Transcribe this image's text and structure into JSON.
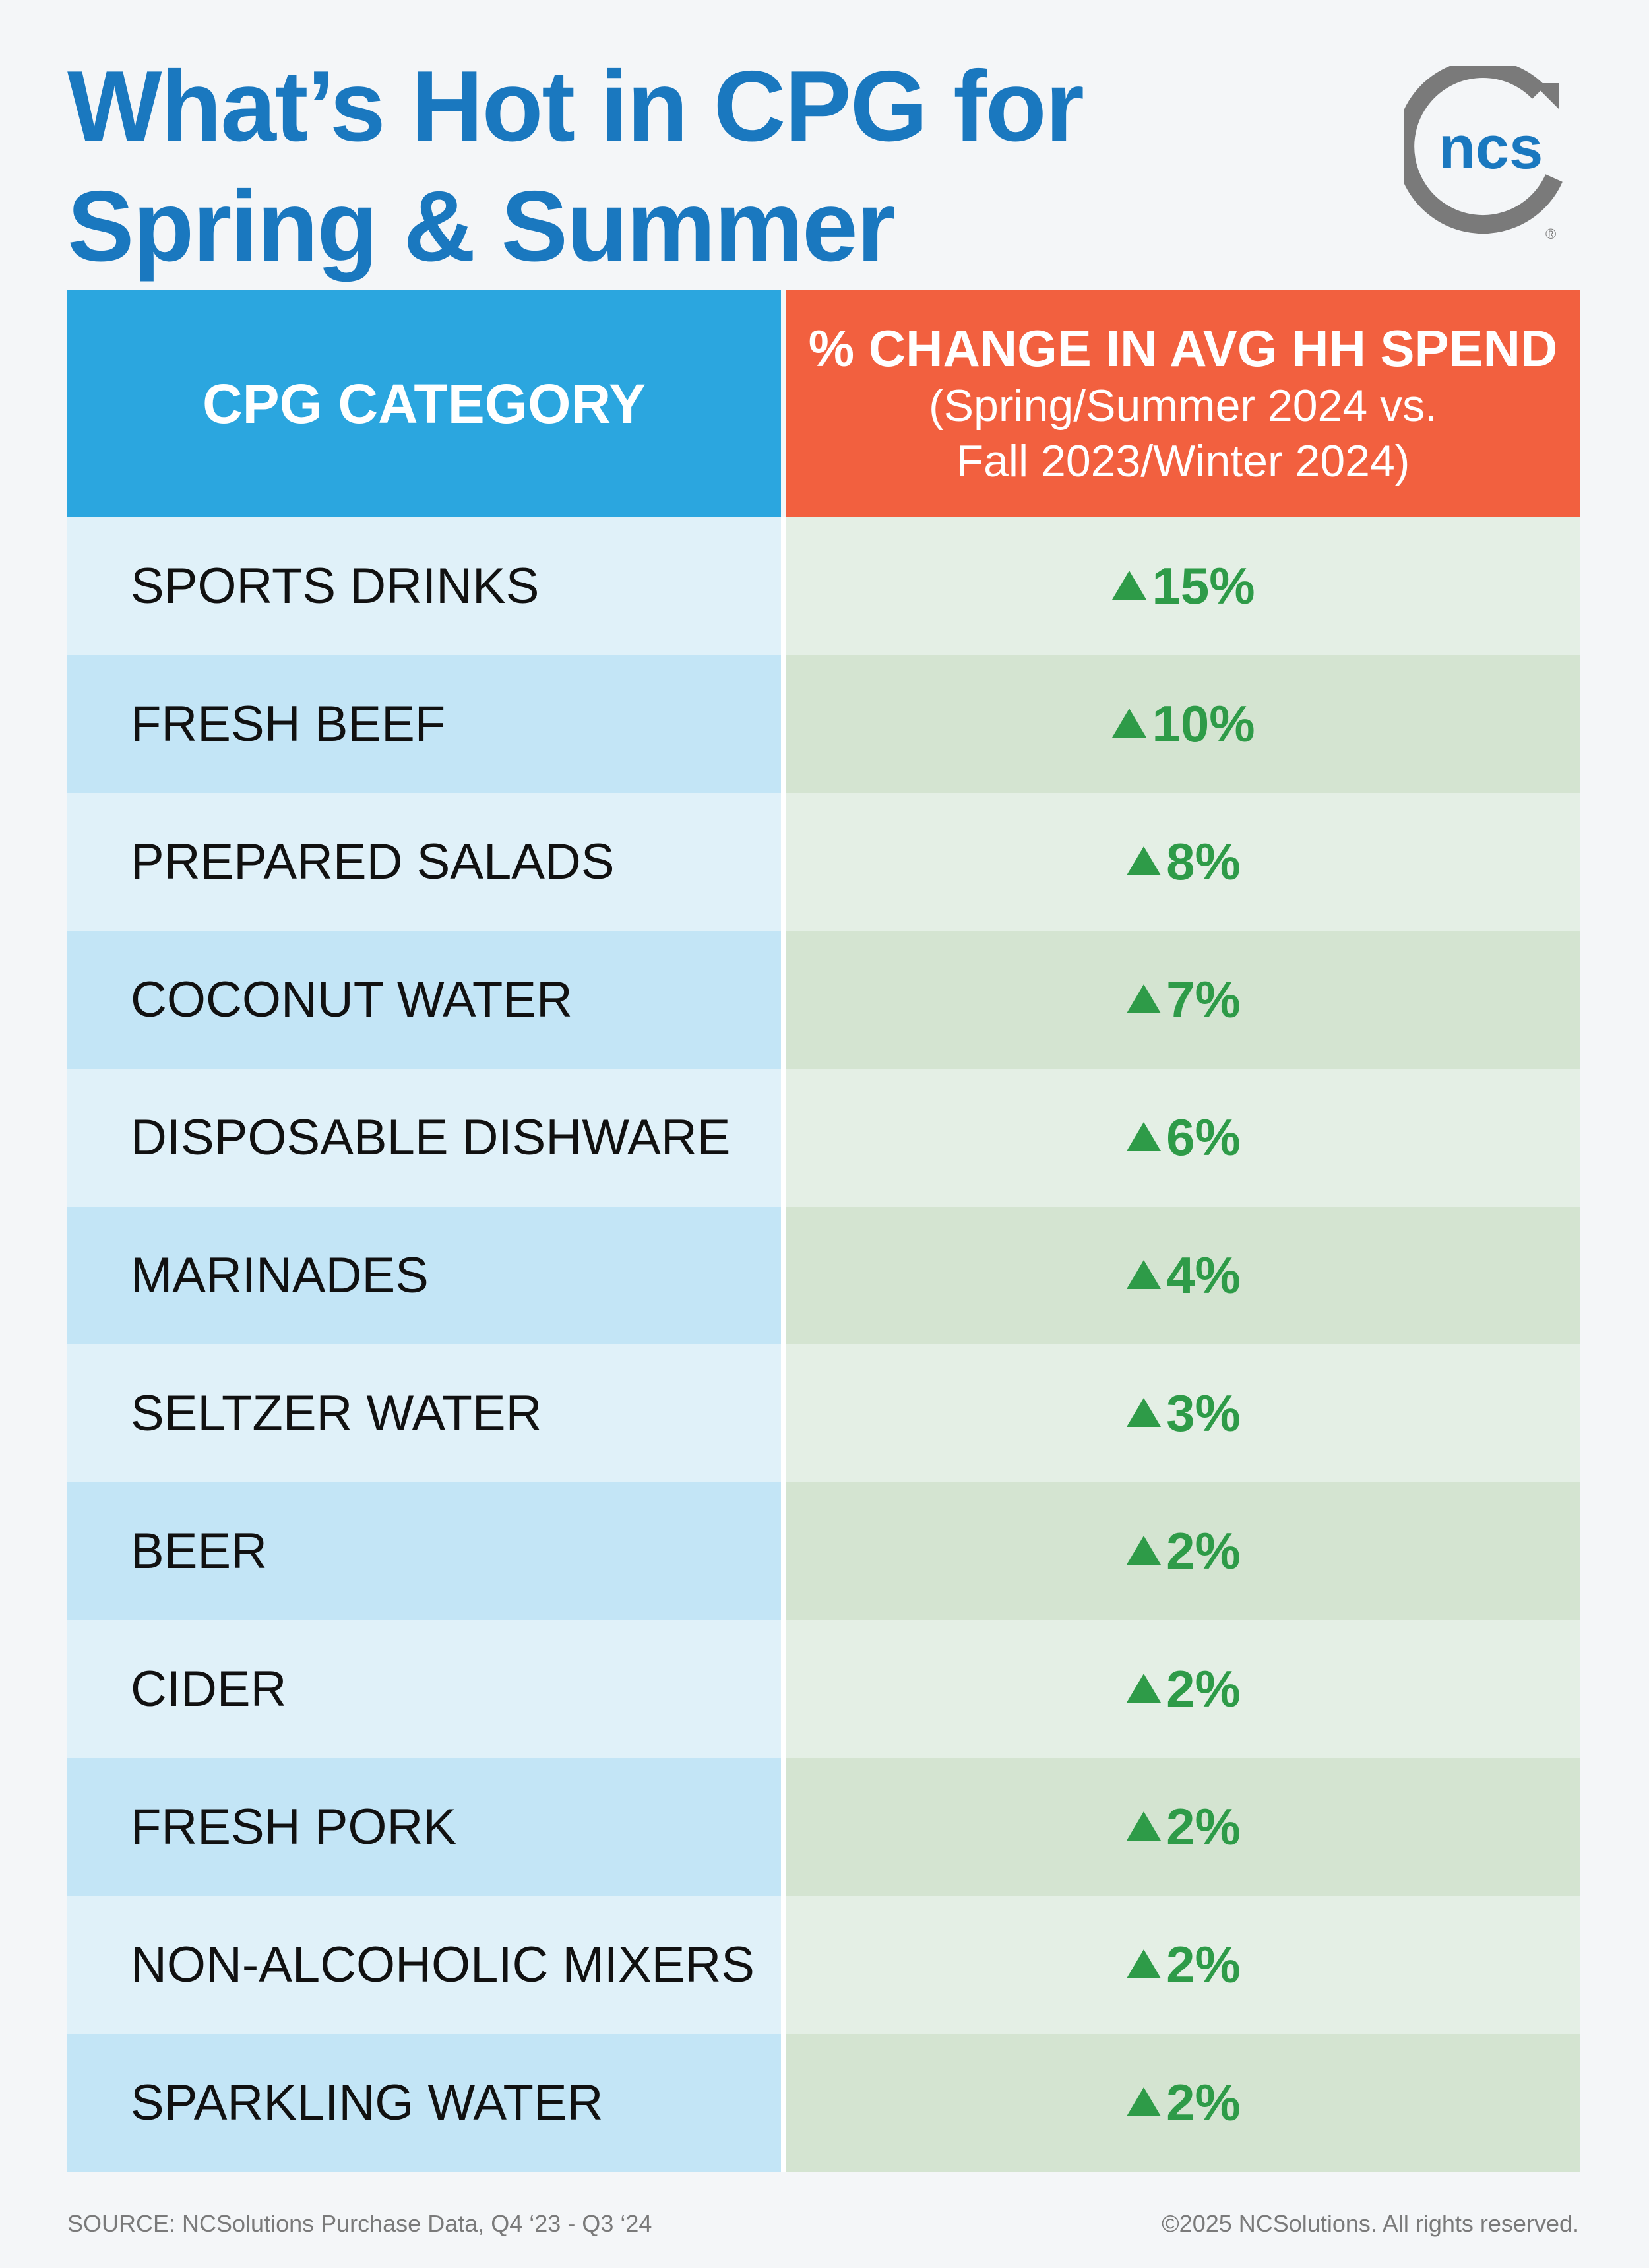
{
  "title_line1": "What’s Hot in CPG for",
  "title_line2": "Spring & Summer",
  "logo": {
    "text": "ncs",
    "registered": "®",
    "ring_color": "#7a7a7a",
    "text_color": "#1a78bf"
  },
  "header": {
    "category": "CPG CATEGORY",
    "change_main": "% CHANGE IN AVG HH SPEND",
    "change_sub1": "(Spring/Summer 2024 vs.",
    "change_sub2": "Fall 2023/Winter 2024)"
  },
  "chart_data": {
    "type": "table",
    "title": "What’s Hot in CPG for Spring & Summer",
    "columns": [
      "CPG CATEGORY",
      "% CHANGE IN AVG HH SPEND (Spring/Summer 2024 vs. Fall 2023/Winter 2024)"
    ],
    "rows": [
      {
        "category": "SPORTS DRINKS",
        "value": 15,
        "label": "15%",
        "direction": "up"
      },
      {
        "category": "FRESH BEEF",
        "value": 10,
        "label": "10%",
        "direction": "up"
      },
      {
        "category": "PREPARED SALADS",
        "value": 8,
        "label": "8%",
        "direction": "up"
      },
      {
        "category": "COCONUT WATER",
        "value": 7,
        "label": "7%",
        "direction": "up"
      },
      {
        "category": "DISPOSABLE DISHWARE",
        "value": 6,
        "label": "6%",
        "direction": "up"
      },
      {
        "category": "MARINADES",
        "value": 4,
        "label": "4%",
        "direction": "up"
      },
      {
        "category": "SELTZER WATER",
        "value": 3,
        "label": "3%",
        "direction": "up"
      },
      {
        "category": "BEER",
        "value": 2,
        "label": "2%",
        "direction": "up"
      },
      {
        "category": "CIDER",
        "value": 2,
        "label": "2%",
        "direction": "up"
      },
      {
        "category": "FRESH PORK",
        "value": 2,
        "label": "2%",
        "direction": "up"
      },
      {
        "category": "NON-ALCOHOLIC MIXERS",
        "value": 2,
        "label": "2%",
        "direction": "up"
      },
      {
        "category": "SPARKLING WATER",
        "value": 2,
        "label": "2%",
        "direction": "up"
      }
    ]
  },
  "colors": {
    "title": "#1a78bf",
    "header_category_bg": "#2ba6df",
    "header_change_bg": "#f2603f",
    "increase": "#2e9b48"
  },
  "footer": {
    "source": "SOURCE: NCSolutions Purchase Data, Q4 ‘23 - Q3 ‘24",
    "copyright": "©2025 NCSolutions. All rights reserved."
  }
}
